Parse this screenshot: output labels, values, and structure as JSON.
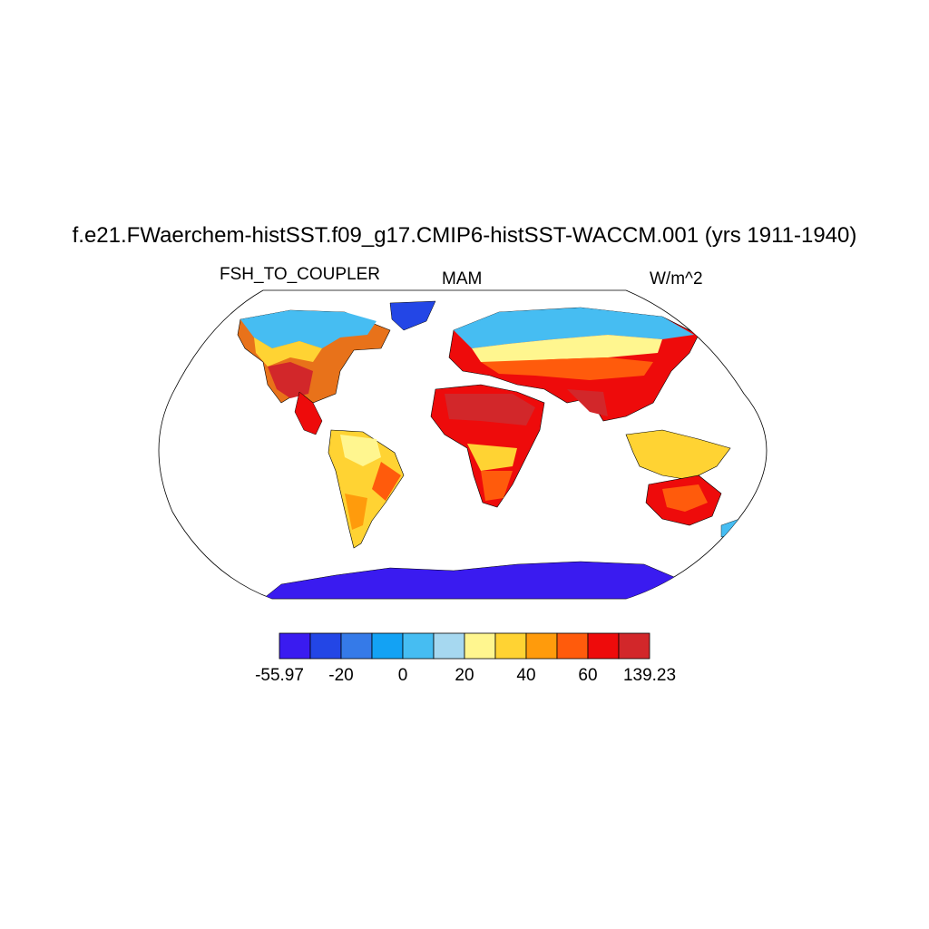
{
  "title": "f.e21.FWaerchem-histSST.f09_g17.CMIP6-histSST-WACCM.001 (yrs 1911-1940)",
  "variable": "FSH_TO_COUPLER",
  "season": "MAM",
  "units": "W/m^2",
  "colorbar": {
    "colors": [
      "#3a1bf0",
      "#2346e6",
      "#357ae8",
      "#13a2f4",
      "#46bdf2",
      "#a6d8f0",
      "#fff68f",
      "#ffd333",
      "#ff9b0c",
      "#ff5b0c",
      "#ee0b0b",
      "#d2272a"
    ],
    "tick_labels": [
      {
        "text": "-55.97",
        "slot": 0
      },
      {
        "text": "-20",
        "slot": 2
      },
      {
        "text": "0",
        "slot": 4
      },
      {
        "text": "20",
        "slot": 6
      },
      {
        "text": "40",
        "slot": 8
      },
      {
        "text": "60",
        "slot": 10
      },
      {
        "text": "139.23",
        "slot": 12
      }
    ]
  }
}
